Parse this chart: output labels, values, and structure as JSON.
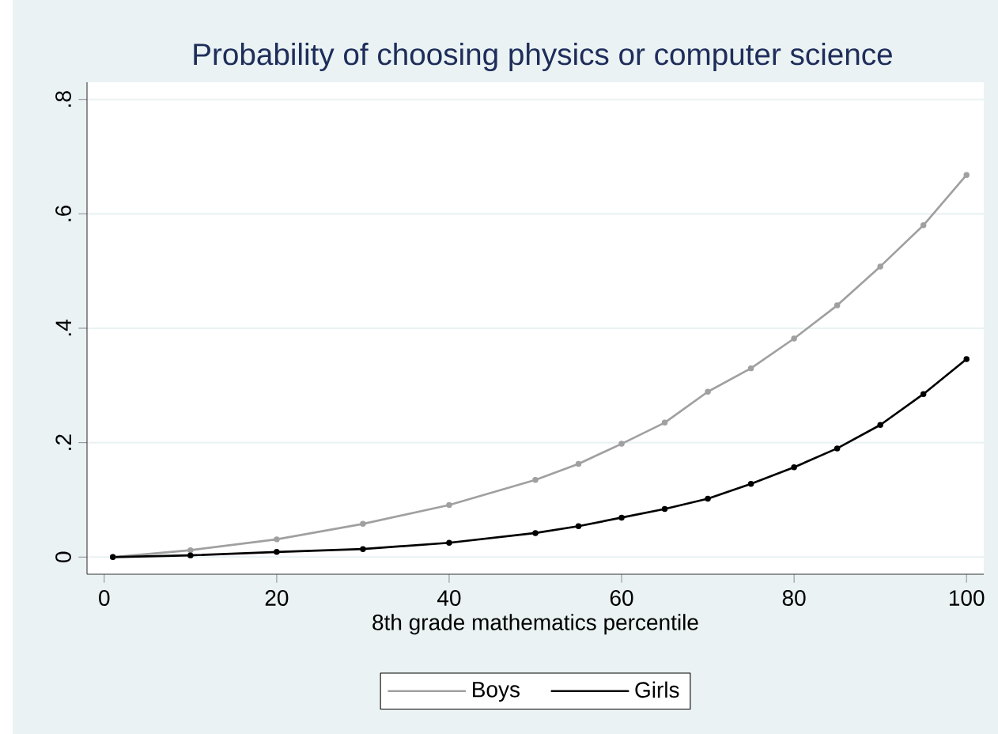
{
  "chart_data": {
    "type": "line",
    "title": "Probability of choosing physics or computer science",
    "xlabel": "8th grade mathematics percentile",
    "x": [
      1,
      10,
      20,
      30,
      40,
      50,
      55,
      60,
      65,
      70,
      75,
      80,
      85,
      90,
      95,
      100
    ],
    "series": [
      {
        "name": "Boys",
        "color": "#a0a0a0",
        "values": [
          0.0,
          0.012,
          0.031,
          0.058,
          0.091,
          0.135,
          0.163,
          0.198,
          0.235,
          0.289,
          0.33,
          0.382,
          0.44,
          0.508,
          0.58,
          0.668
        ]
      },
      {
        "name": "Girls",
        "color": "#000000",
        "values": [
          0.0,
          0.003,
          0.009,
          0.014,
          0.025,
          0.042,
          0.054,
          0.069,
          0.084,
          0.102,
          0.128,
          0.157,
          0.19,
          0.231,
          0.285,
          0.346
        ]
      }
    ],
    "xlim": [
      -2,
      102
    ],
    "ylim": [
      -0.03,
      0.83
    ],
    "xticks": [
      0,
      20,
      40,
      60,
      80,
      100
    ],
    "yticks": [
      {
        "value": 0,
        "label": "0"
      },
      {
        "value": 0.2,
        "label": ".2"
      },
      {
        "value": 0.4,
        "label": ".4"
      },
      {
        "value": 0.6,
        "label": ".6"
      },
      {
        "value": 0.8,
        "label": ".8"
      }
    ],
    "grid": "y",
    "legend": "bottom",
    "marker": "circle",
    "line_style": "solid"
  }
}
